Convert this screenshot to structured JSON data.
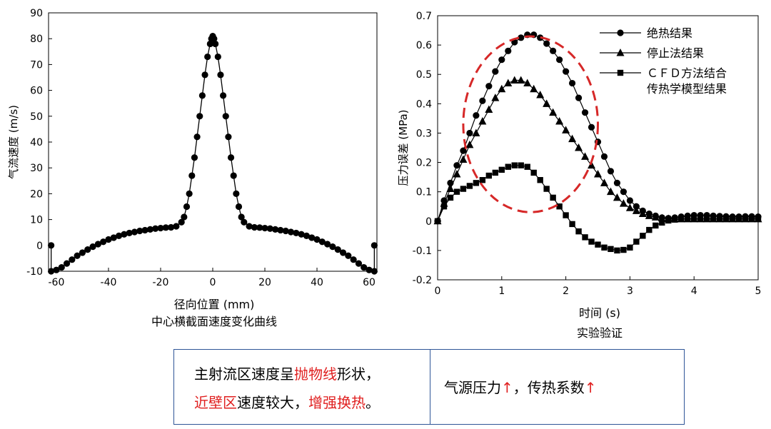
{
  "chart_data": [
    {
      "type": "line",
      "title": "中心横截面速度变化曲线",
      "xlabel": "径向位置 (mm)",
      "ylabel": "气流速度 (m/s)",
      "xlim": [
        -63,
        63
      ],
      "ylim": [
        -10,
        90
      ],
      "xticks": [
        -60,
        -40,
        -20,
        0,
        20,
        40,
        60
      ],
      "yticks": [
        -10,
        0,
        10,
        20,
        30,
        40,
        50,
        60,
        70,
        80,
        90
      ],
      "grid": false,
      "marker": "circle",
      "series": [
        {
          "x": [
            -62,
            -62,
            -60,
            -58,
            -56,
            -54,
            -52,
            -50,
            -48,
            -46,
            -44,
            -42,
            -40,
            -38,
            -36,
            -34,
            -32,
            -30,
            -28,
            -26,
            -24,
            -22,
            -20,
            -18,
            -16,
            -14,
            -12,
            -11,
            -10,
            -9,
            -8,
            -7,
            -6,
            -5,
            -4,
            -3,
            -2,
            -1,
            -0.5,
            0,
            0.5,
            1,
            2,
            3,
            4,
            5,
            6,
            7,
            8,
            9,
            10,
            11,
            12,
            14,
            16,
            18,
            20,
            22,
            24,
            26,
            28,
            30,
            32,
            34,
            36,
            38,
            40,
            42,
            44,
            46,
            48,
            50,
            52,
            54,
            56,
            58,
            60,
            62,
            62
          ],
          "y": [
            0,
            -10,
            -9.5,
            -8.5,
            -7,
            -5.5,
            -4,
            -2.8,
            -1.6,
            -0.5,
            0.5,
            1.4,
            2.3,
            3.0,
            3.7,
            4.3,
            4.8,
            5.2,
            5.6,
            5.9,
            6.2,
            6.5,
            6.7,
            6.9,
            7.0,
            7.4,
            9,
            11,
            15,
            20,
            27,
            34,
            42,
            50,
            58,
            66,
            73,
            78,
            80,
            81,
            80,
            78,
            73,
            66,
            58,
            50,
            42,
            34,
            27,
            20,
            15,
            11,
            9,
            7.4,
            7.0,
            6.9,
            6.7,
            6.5,
            6.2,
            5.9,
            5.6,
            5.2,
            4.8,
            4.3,
            3.7,
            3.0,
            2.3,
            1.4,
            0.5,
            -0.5,
            -1.6,
            -2.8,
            -4,
            -5.5,
            -7,
            -8.5,
            -9.5,
            -10,
            0
          ]
        }
      ]
    },
    {
      "type": "line",
      "title": "实验验证",
      "xlabel": "时间 (s)",
      "ylabel": "压力误差 (MPa)",
      "xlim": [
        0,
        5
      ],
      "ylim": [
        -0.2,
        0.7
      ],
      "xticks": [
        0,
        1,
        2,
        3,
        4,
        5
      ],
      "yticks": [
        -0.2,
        -0.1,
        0,
        0.1,
        0.2,
        0.3,
        0.4,
        0.5,
        0.6,
        0.7
      ],
      "grid": false,
      "legend": "top-right",
      "annotation": "dashed red ellipse around peaks",
      "series": [
        {
          "name": "绝热结果",
          "marker": "circle",
          "x": [
            0,
            0.1,
            0.2,
            0.3,
            0.4,
            0.5,
            0.6,
            0.7,
            0.8,
            0.9,
            1.0,
            1.1,
            1.2,
            1.3,
            1.4,
            1.5,
            1.6,
            1.7,
            1.8,
            1.9,
            2.0,
            2.1,
            2.2,
            2.3,
            2.4,
            2.5,
            2.6,
            2.7,
            2.8,
            2.9,
            3.0,
            3.1,
            3.2,
            3.3,
            3.4,
            3.5,
            3.6,
            3.7,
            3.8,
            3.9,
            4.0,
            4.1,
            4.2,
            4.3,
            4.4,
            4.5,
            4.6,
            4.7,
            4.8,
            4.9,
            5.0
          ],
          "y": [
            0.0,
            0.07,
            0.13,
            0.19,
            0.24,
            0.3,
            0.36,
            0.41,
            0.46,
            0.51,
            0.55,
            0.58,
            0.61,
            0.625,
            0.635,
            0.635,
            0.625,
            0.605,
            0.58,
            0.55,
            0.51,
            0.47,
            0.42,
            0.37,
            0.32,
            0.27,
            0.22,
            0.17,
            0.13,
            0.1,
            0.07,
            0.05,
            0.035,
            0.025,
            0.018,
            0.012,
            0.01,
            0.012,
            0.015,
            0.018,
            0.02,
            0.02,
            0.02,
            0.018,
            0.017,
            0.016,
            0.015,
            0.015,
            0.016,
            0.016,
            0.015
          ]
        },
        {
          "name": "停止法结果",
          "marker": "triangle",
          "x": [
            0,
            0.1,
            0.2,
            0.3,
            0.4,
            0.5,
            0.6,
            0.7,
            0.8,
            0.9,
            1.0,
            1.1,
            1.2,
            1.3,
            1.4,
            1.5,
            1.6,
            1.7,
            1.8,
            1.9,
            2.0,
            2.1,
            2.2,
            2.3,
            2.4,
            2.5,
            2.6,
            2.7,
            2.8,
            2.9,
            3.0,
            3.1,
            3.2,
            3.3,
            3.4,
            3.5,
            3.6,
            3.7,
            3.8,
            3.9,
            4.0,
            4.1,
            4.2,
            4.3,
            4.4,
            4.5,
            4.6,
            4.7,
            4.8,
            4.9,
            5.0
          ],
          "y": [
            0.0,
            0.06,
            0.11,
            0.16,
            0.21,
            0.26,
            0.3,
            0.34,
            0.38,
            0.42,
            0.45,
            0.47,
            0.48,
            0.48,
            0.47,
            0.45,
            0.43,
            0.4,
            0.37,
            0.34,
            0.31,
            0.28,
            0.25,
            0.22,
            0.19,
            0.16,
            0.13,
            0.1,
            0.08,
            0.06,
            0.045,
            0.035,
            0.025,
            0.018,
            0.013,
            0.01,
            0.008,
            0.007,
            0.007,
            0.007,
            0.007,
            0.007,
            0.007,
            0.007,
            0.007,
            0.007,
            0.007,
            0.007,
            0.007,
            0.007,
            0.007
          ]
        },
        {
          "name": "ＣＦＤ方法结合\n传热学模型结果",
          "marker": "square",
          "x": [
            0,
            0.1,
            0.2,
            0.3,
            0.4,
            0.5,
            0.6,
            0.7,
            0.8,
            0.9,
            1.0,
            1.1,
            1.2,
            1.3,
            1.4,
            1.5,
            1.6,
            1.7,
            1.8,
            1.9,
            2.0,
            2.1,
            2.2,
            2.3,
            2.4,
            2.5,
            2.6,
            2.7,
            2.8,
            2.9,
            3.0,
            3.1,
            3.2,
            3.3,
            3.4,
            3.5,
            3.6,
            3.7,
            3.8,
            3.9,
            4.0,
            4.1,
            4.2,
            4.3,
            4.4,
            4.5,
            4.6,
            4.7,
            4.8,
            4.9,
            5.0
          ],
          "y": [
            0.0,
            0.05,
            0.08,
            0.1,
            0.11,
            0.12,
            0.13,
            0.14,
            0.155,
            0.165,
            0.175,
            0.185,
            0.19,
            0.19,
            0.185,
            0.165,
            0.14,
            0.11,
            0.08,
            0.05,
            0.02,
            -0.01,
            -0.035,
            -0.055,
            -0.07,
            -0.08,
            -0.09,
            -0.095,
            -0.1,
            -0.098,
            -0.09,
            -0.07,
            -0.05,
            -0.03,
            -0.015,
            -0.005,
            0.002,
            0.005,
            0.007,
            0.008,
            0.008,
            0.008,
            0.008,
            0.008,
            0.008,
            0.008,
            0.008,
            0.008,
            0.008,
            0.008,
            0.008
          ]
        }
      ]
    }
  ],
  "note": {
    "left_line1": [
      {
        "text": "主射流区速度呈",
        "red": false
      },
      {
        "text": "抛物线",
        "red": true
      },
      {
        "text": "形状，",
        "red": false
      }
    ],
    "left_line2": [
      {
        "text": "近壁区",
        "red": true
      },
      {
        "text": "速度较大，",
        "red": false
      },
      {
        "text": "增强换热",
        "red": true
      },
      {
        "text": "。",
        "red": false
      }
    ],
    "right": [
      {
        "text": "气源压力",
        "red": false
      },
      {
        "text": "↑",
        "red": true
      },
      {
        "text": "，传热系数",
        "red": false
      },
      {
        "text": "↑",
        "red": true
      }
    ]
  },
  "colors": {
    "accent": "#e02020",
    "box_border": "#2f5597"
  }
}
